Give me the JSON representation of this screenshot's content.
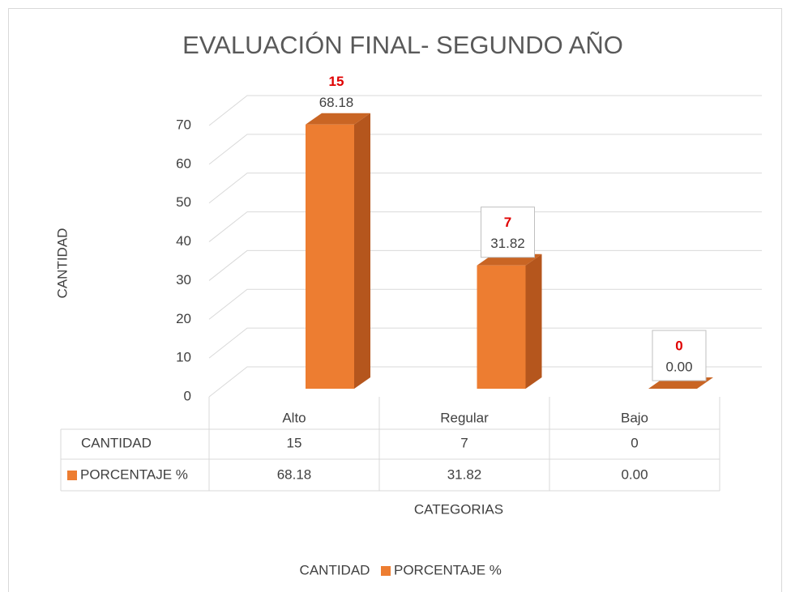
{
  "chart_data": {
    "type": "bar3d",
    "title": "EVALUACIÓN FINAL- SEGUNDO AÑO",
    "x_label": "CATEGORIAS",
    "y_label": "CANTIDAD",
    "categories": [
      "Alto",
      "Regular",
      "Bajo"
    ],
    "series": [
      {
        "name": "CANTIDAD",
        "label_color": "#e00000",
        "values": [
          15,
          7,
          0
        ]
      },
      {
        "name": "PORCENTAJE %",
        "color": "#ed7d31",
        "values": [
          68.18,
          31.82,
          0
        ],
        "value_labels": [
          "68.18",
          "31.82",
          "0.00"
        ]
      }
    ],
    "ylim": [
      0,
      70
    ],
    "yticks": [
      0,
      10,
      20,
      30,
      40,
      50,
      60,
      70
    ],
    "grid": true,
    "data_table": true,
    "legend": "bottom"
  }
}
